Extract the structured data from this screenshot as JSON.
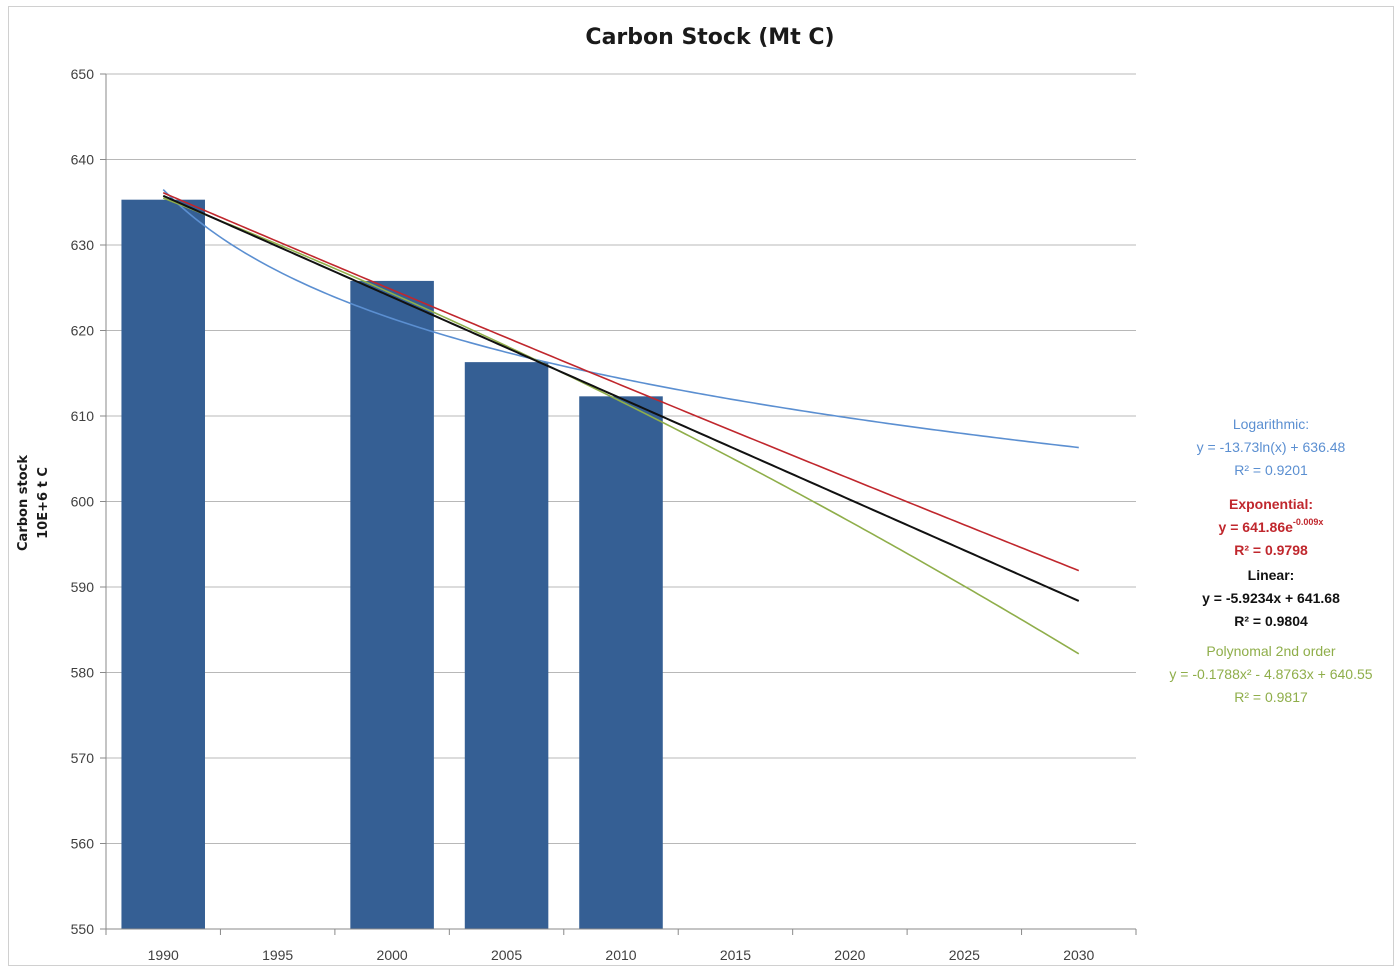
{
  "chart_data": {
    "type": "bar",
    "title": "Carbon Stock (Mt C)",
    "ylabel_lines": [
      "Carbon stock",
      "10E+6  t C"
    ],
    "xlabel": "",
    "categories": [
      "1990",
      "1995",
      "2000",
      "2005",
      "2010",
      "2015",
      "2020",
      "2025",
      "2030"
    ],
    "series": [
      {
        "values": [
          635.3,
          null,
          625.8,
          616.3,
          612.3,
          null,
          null,
          null,
          null
        ],
        "color": "#355f94"
      }
    ],
    "ylim": [
      550,
      650
    ],
    "yticks": [
      550,
      560,
      570,
      580,
      590,
      600,
      610,
      620,
      630,
      640,
      650
    ],
    "grid": true,
    "trendlines": [
      {
        "name": "Logarithmic",
        "label": "Logarithmic:",
        "equation": "y = -13.73ln(x) + 636.48",
        "r2": "R² = 0.9201",
        "color": "#5b8fd1",
        "bold": false,
        "a": -13.73,
        "b": 636.48
      },
      {
        "name": "Exponential",
        "label": "Exponential:",
        "equation": "y = 641.86e",
        "equation_exp": "-0.009x",
        "r2": "R² = 0.9798",
        "color": "#c0272d",
        "bold": true,
        "a": 641.86,
        "k": -0.009
      },
      {
        "name": "Linear",
        "label": "Linear:",
        "equation": "y = -5.9234x + 641.68",
        "r2": "R² = 0.9804",
        "color": "#111111",
        "bold": true,
        "m": -5.9234,
        "c": 641.68
      },
      {
        "name": "Polynomal 2nd order",
        "label": "Polynomal 2nd order",
        "equation": "y = -0.1788x² - 4.8763x + 640.55",
        "r2": "R² = 0.9817",
        "color": "#8fae4a",
        "bold": false,
        "a": -0.1788,
        "b": -4.8763,
        "c": 640.55
      }
    ]
  }
}
